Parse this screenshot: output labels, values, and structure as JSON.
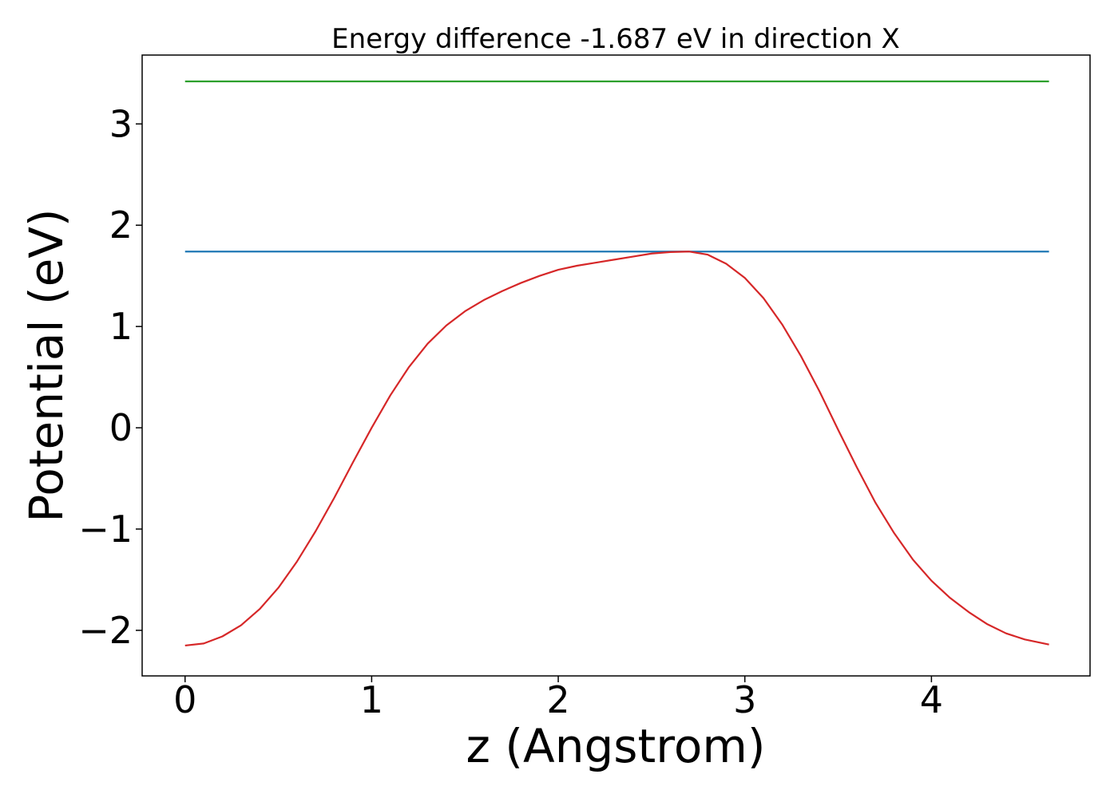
{
  "chart_data": {
    "type": "line",
    "title": "Energy difference -1.687 eV in direction X",
    "xlabel": "z (Angstrom)",
    "ylabel": "Potential (eV)",
    "xlim": [
      -0.23,
      4.85
    ],
    "ylim": [
      -2.45,
      3.68
    ],
    "xticks": [
      0,
      1,
      2,
      3,
      4
    ],
    "yticks": [
      -2,
      -1,
      0,
      1,
      2,
      3
    ],
    "xtick_labels": [
      "0",
      "1",
      "2",
      "3",
      "4"
    ],
    "ytick_labels": [
      "−2",
      "−1",
      "0",
      "1",
      "2",
      "3"
    ],
    "grid": false,
    "legend": "none",
    "series": [
      {
        "color": "#2ca02c",
        "x": [
          0,
          4.63
        ],
        "y": [
          3.42,
          3.42
        ]
      },
      {
        "color": "#1f77b4",
        "x": [
          0,
          4.63
        ],
        "y": [
          1.74,
          1.74
        ]
      },
      {
        "color": "#d62728",
        "x": [
          0,
          0.1,
          0.2,
          0.3,
          0.4,
          0.5,
          0.6,
          0.7,
          0.8,
          0.9,
          1.0,
          1.1,
          1.2,
          1.3,
          1.4,
          1.5,
          1.6,
          1.7,
          1.8,
          1.9,
          2.0,
          2.1,
          2.2,
          2.3,
          2.4,
          2.5,
          2.6,
          2.7,
          2.8,
          2.9,
          3.0,
          3.1,
          3.2,
          3.3,
          3.4,
          3.5,
          3.6,
          3.7,
          3.8,
          3.9,
          4.0,
          4.1,
          4.2,
          4.3,
          4.4,
          4.5,
          4.63
        ],
        "y": [
          -2.15,
          -2.13,
          -2.06,
          -1.95,
          -1.79,
          -1.58,
          -1.32,
          -1.02,
          -0.69,
          -0.34,
          0.0,
          0.32,
          0.6,
          0.83,
          1.01,
          1.15,
          1.26,
          1.35,
          1.43,
          1.5,
          1.56,
          1.6,
          1.63,
          1.66,
          1.69,
          1.72,
          1.735,
          1.74,
          1.71,
          1.62,
          1.48,
          1.28,
          1.02,
          0.71,
          0.36,
          -0.02,
          -0.39,
          -0.74,
          -1.04,
          -1.3,
          -1.51,
          -1.68,
          -1.82,
          -1.94,
          -2.03,
          -2.09,
          -2.14
        ]
      }
    ]
  }
}
